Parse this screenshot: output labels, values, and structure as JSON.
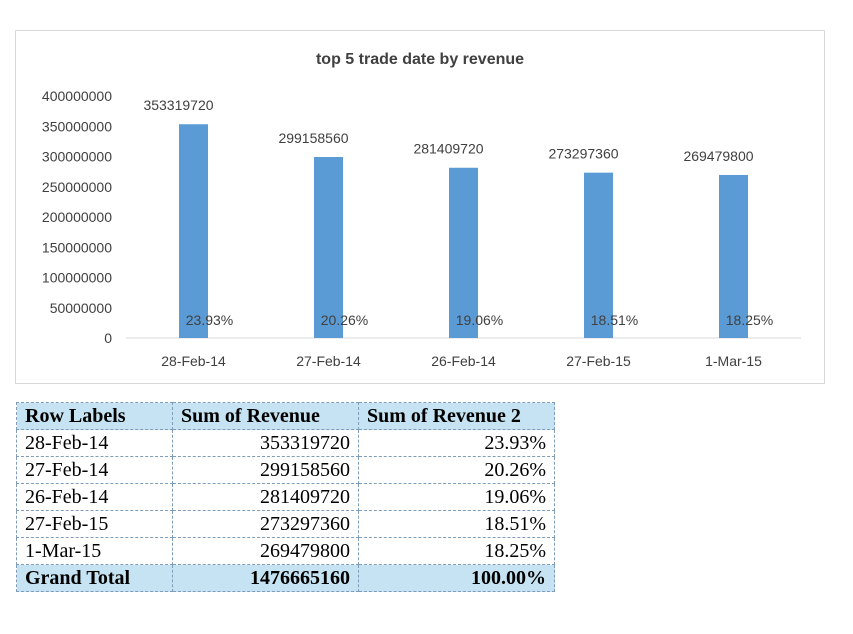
{
  "colors": {
    "bar": "#5b9bd5",
    "axis": "#d9d9d9",
    "text": "#404040",
    "table_header": "#c5e3f2"
  },
  "chart_data": {
    "type": "bar",
    "title": "top 5 trade date by revenue",
    "categories": [
      "28-Feb-14",
      "27-Feb-14",
      "26-Feb-14",
      "27-Feb-15",
      "1-Mar-15"
    ],
    "values": [
      353319720,
      299158560,
      281409720,
      273297360,
      269479800
    ],
    "percent_labels": [
      "23.93%",
      "20.26%",
      "19.06%",
      "18.51%",
      "18.25%"
    ],
    "y_ticks": [
      "0",
      "50000000",
      "100000000",
      "150000000",
      "200000000",
      "250000000",
      "300000000",
      "350000000",
      "400000000"
    ],
    "ylim": [
      0,
      400000000
    ],
    "grid": false,
    "legend": "none"
  },
  "table": {
    "headers": [
      "Row Labels",
      "Sum of Revenue",
      "Sum of Revenue 2"
    ],
    "rows": [
      [
        "28-Feb-14",
        "353319720",
        "23.93%"
      ],
      [
        "27-Feb-14",
        "299158560",
        "20.26%"
      ],
      [
        "26-Feb-14",
        "281409720",
        "19.06%"
      ],
      [
        "27-Feb-15",
        "273297360",
        "18.51%"
      ],
      [
        "1-Mar-15",
        "269479800",
        "18.25%"
      ]
    ],
    "total": [
      "Grand Total",
      "1476665160",
      "100.00%"
    ]
  }
}
